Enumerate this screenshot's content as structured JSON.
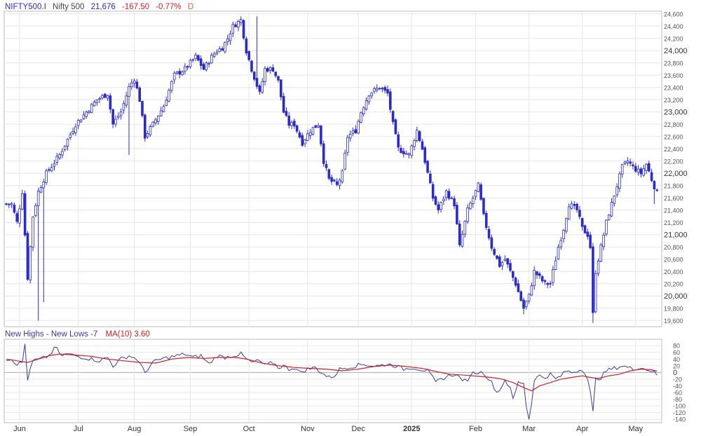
{
  "header": {
    "symbol": "NIFTY500.I",
    "name": "Nifty 500",
    "last": "21,676",
    "change": "-167.50",
    "change_pct": "-0.77%",
    "interval": "D"
  },
  "indicator_header": {
    "label": "New Highs - New Lows -7",
    "ma_label": "MA(10) 3.60"
  },
  "colors": {
    "candle": "#2b2bcc",
    "indicator_line": "#3b3b9e",
    "ma_line": "#cc2222",
    "grid": "#e6e6e6",
    "axis_text": "#555555",
    "negative": "#d62020",
    "interval": "#d2691e"
  },
  "chart_data": [
    {
      "type": "candlestick",
      "title": "",
      "y_ticks": [
        "19,600",
        "19,800",
        "20,000",
        "20,200",
        "20,400",
        "20,600",
        "20,800",
        "21,000",
        "21,200",
        "21,400",
        "21,600",
        "21,800",
        "22,000",
        "22,200",
        "22,400",
        "22,600",
        "22,800",
        "23,000",
        "23,200",
        "23,400",
        "23,600",
        "23,800",
        "24,000",
        "24,200",
        "24,400",
        "24,600"
      ],
      "y_tick_values": [
        19600,
        19800,
        20000,
        20200,
        20400,
        20600,
        20800,
        21000,
        21200,
        21400,
        21600,
        21800,
        22000,
        22200,
        22400,
        22600,
        22800,
        23000,
        23200,
        23400,
        23600,
        23800,
        24000,
        24200,
        24400,
        24600
      ],
      "ylim": [
        19500,
        24620
      ],
      "x_labels": [
        "Jun",
        "Jul",
        "Aug",
        "Sep",
        "Oct",
        "Nov",
        "Dec",
        "2025",
        "Feb",
        "Mar",
        "Apr",
        "May"
      ],
      "x_label_values": [
        5,
        27,
        48,
        69,
        91,
        113,
        132,
        152,
        176,
        196,
        216,
        236
      ],
      "xlim": [
        0,
        245
      ],
      "anchors": [
        [
          0,
          21500
        ],
        [
          2,
          21500
        ],
        [
          4,
          21200
        ],
        [
          6,
          21700
        ],
        [
          8,
          20300
        ],
        [
          10,
          21300
        ],
        [
          12,
          21700
        ],
        [
          15,
          22000
        ],
        [
          20,
          22300
        ],
        [
          26,
          22800
        ],
        [
          30,
          23000
        ],
        [
          34,
          23200
        ],
        [
          38,
          23300
        ],
        [
          40,
          22800
        ],
        [
          43,
          23000
        ],
        [
          46,
          23400
        ],
        [
          48,
          23550
        ],
        [
          50,
          23200
        ],
        [
          52,
          22600
        ],
        [
          55,
          22800
        ],
        [
          59,
          23100
        ],
        [
          63,
          23600
        ],
        [
          67,
          23700
        ],
        [
          71,
          23900
        ],
        [
          74,
          23700
        ],
        [
          77,
          23900
        ],
        [
          79,
          24000
        ],
        [
          81,
          24050
        ],
        [
          83,
          24200
        ],
        [
          85,
          24400
        ],
        [
          88,
          24500
        ],
        [
          90,
          24000
        ],
        [
          92,
          23700
        ],
        [
          95,
          23300
        ],
        [
          97,
          23700
        ],
        [
          100,
          23700
        ],
        [
          102,
          23500
        ],
        [
          104,
          23000
        ],
        [
          106,
          22800
        ],
        [
          108,
          22800
        ],
        [
          111,
          22500
        ],
        [
          114,
          22700
        ],
        [
          117,
          22800
        ],
        [
          119,
          22200
        ],
        [
          121,
          21900
        ],
        [
          124,
          21800
        ],
        [
          126,
          22000
        ],
        [
          128,
          22600
        ],
        [
          131,
          22700
        ],
        [
          133,
          23000
        ],
        [
          136,
          23300
        ],
        [
          140,
          23400
        ],
        [
          143,
          23300
        ],
        [
          145,
          22800
        ],
        [
          147,
          22400
        ],
        [
          151,
          22300
        ],
        [
          154,
          22700
        ],
        [
          156,
          22400
        ],
        [
          160,
          21600
        ],
        [
          162,
          21400
        ],
        [
          165,
          21700
        ],
        [
          168,
          21500
        ],
        [
          170,
          20800
        ],
        [
          173,
          21400
        ],
        [
          175,
          21600
        ],
        [
          177,
          21800
        ],
        [
          179,
          21300
        ],
        [
          182,
          20800
        ],
        [
          185,
          20500
        ],
        [
          187,
          20600
        ],
        [
          189,
          20400
        ],
        [
          191,
          20200
        ],
        [
          194,
          19800
        ],
        [
          196,
          20000
        ],
        [
          198,
          20400
        ],
        [
          200,
          20300
        ],
        [
          202,
          20200
        ],
        [
          204,
          20200
        ],
        [
          207,
          20800
        ],
        [
          209,
          21100
        ],
        [
          211,
          21500
        ],
        [
          214,
          21400
        ],
        [
          216,
          21100
        ],
        [
          218,
          21000
        ],
        [
          219,
          20800
        ],
        [
          220,
          19700
        ],
        [
          221,
          20400
        ],
        [
          223,
          20800
        ],
        [
          225,
          21200
        ],
        [
          227,
          21500
        ],
        [
          229,
          21800
        ],
        [
          231,
          22100
        ],
        [
          233,
          22200
        ],
        [
          235,
          22100
        ],
        [
          238,
          22000
        ],
        [
          240,
          22150
        ],
        [
          242,
          21900
        ],
        [
          244,
          21676
        ]
      ],
      "wick_extremes": [
        [
          12,
          19600
        ],
        [
          14,
          19900
        ],
        [
          46,
          22300
        ],
        [
          94,
          24560
        ],
        [
          220,
          19560
        ],
        [
          194,
          19700
        ],
        [
          243,
          21500
        ]
      ]
    },
    {
      "type": "line",
      "title": "",
      "series": [
        {
          "name": "New Highs - New Lows",
          "values": [
            [
              0,
              40
            ],
            [
              2,
              40
            ],
            [
              4,
              25
            ],
            [
              6,
              30
            ],
            [
              7,
              85
            ],
            [
              8,
              -20
            ],
            [
              10,
              35
            ],
            [
              13,
              40
            ],
            [
              16,
              50
            ],
            [
              18,
              70
            ],
            [
              19,
              75
            ],
            [
              20,
              50
            ],
            [
              23,
              55
            ],
            [
              26,
              50
            ],
            [
              29,
              45
            ],
            [
              32,
              40
            ],
            [
              35,
              35
            ],
            [
              38,
              45
            ],
            [
              40,
              20
            ],
            [
              43,
              40
            ],
            [
              46,
              50
            ],
            [
              49,
              40
            ],
            [
              52,
              0
            ],
            [
              55,
              30
            ],
            [
              58,
              40
            ],
            [
              61,
              45
            ],
            [
              64,
              50
            ],
            [
              67,
              55
            ],
            [
              70,
              45
            ],
            [
              73,
              50
            ],
            [
              76,
              25
            ],
            [
              79,
              50
            ],
            [
              82,
              45
            ],
            [
              85,
              50
            ],
            [
              88,
              55
            ],
            [
              90,
              40
            ],
            [
              92,
              30
            ],
            [
              95,
              35
            ],
            [
              97,
              20
            ],
            [
              100,
              30
            ],
            [
              102,
              15
            ],
            [
              104,
              20
            ],
            [
              106,
              10
            ],
            [
              108,
              15
            ],
            [
              110,
              0
            ],
            [
              113,
              10
            ],
            [
              116,
              15
            ],
            [
              118,
              0
            ],
            [
              121,
              -15
            ],
            [
              123,
              -10
            ],
            [
              125,
              10
            ],
            [
              128,
              15
            ],
            [
              131,
              20
            ],
            [
              134,
              25
            ],
            [
              137,
              20
            ],
            [
              140,
              20
            ],
            [
              143,
              25
            ],
            [
              146,
              20
            ],
            [
              149,
              10
            ],
            [
              152,
              15
            ],
            [
              155,
              10
            ],
            [
              158,
              5
            ],
            [
              161,
              -30
            ],
            [
              163,
              -20
            ],
            [
              166,
              -10
            ],
            [
              168,
              -5
            ],
            [
              171,
              -20
            ],
            [
              173,
              -30
            ],
            [
              174,
              -5
            ],
            [
              176,
              0
            ],
            [
              179,
              0
            ],
            [
              182,
              -30
            ],
            [
              184,
              -60
            ],
            [
              186,
              -40
            ],
            [
              187,
              -20
            ],
            [
              189,
              -50
            ],
            [
              190,
              -80
            ],
            [
              192,
              -30
            ],
            [
              194,
              -30
            ],
            [
              195,
              -100
            ],
            [
              196,
              -140
            ],
            [
              197,
              -90
            ],
            [
              198,
              -20
            ],
            [
              200,
              -10
            ],
            [
              202,
              -15
            ],
            [
              204,
              -5
            ],
            [
              206,
              -20
            ],
            [
              208,
              -10
            ],
            [
              210,
              5
            ],
            [
              212,
              0
            ],
            [
              214,
              5
            ],
            [
              216,
              10
            ],
            [
              217,
              0
            ],
            [
              218,
              -20
            ],
            [
              219,
              -60
            ],
            [
              220,
              -120
            ],
            [
              221,
              -20
            ],
            [
              223,
              -15
            ],
            [
              225,
              5
            ],
            [
              227,
              10
            ],
            [
              229,
              15
            ],
            [
              231,
              20
            ],
            [
              233,
              15
            ],
            [
              235,
              10
            ],
            [
              237,
              15
            ],
            [
              240,
              10
            ],
            [
              242,
              5
            ],
            [
              244,
              -7
            ]
          ]
        },
        {
          "name": "MA(10)",
          "values": [
            [
              0,
              40
            ],
            [
              4,
              35
            ],
            [
              8,
              30
            ],
            [
              12,
              40
            ],
            [
              16,
              50
            ],
            [
              20,
              55
            ],
            [
              26,
              52
            ],
            [
              32,
              48
            ],
            [
              38,
              40
            ],
            [
              44,
              35
            ],
            [
              50,
              30
            ],
            [
              56,
              28
            ],
            [
              62,
              40
            ],
            [
              68,
              45
            ],
            [
              74,
              42
            ],
            [
              80,
              45
            ],
            [
              86,
              45
            ],
            [
              90,
              40
            ],
            [
              96,
              28
            ],
            [
              102,
              20
            ],
            [
              108,
              15
            ],
            [
              114,
              12
            ],
            [
              120,
              10
            ],
            [
              126,
              5
            ],
            [
              132,
              10
            ],
            [
              138,
              18
            ],
            [
              144,
              22
            ],
            [
              150,
              18
            ],
            [
              156,
              12
            ],
            [
              160,
              5
            ],
            [
              166,
              -5
            ],
            [
              172,
              -8
            ],
            [
              178,
              -12
            ],
            [
              182,
              -15
            ],
            [
              186,
              -20
            ],
            [
              190,
              -30
            ],
            [
              194,
              -45
            ],
            [
              197,
              -55
            ],
            [
              200,
              -40
            ],
            [
              204,
              -30
            ],
            [
              208,
              -20
            ],
            [
              212,
              -15
            ],
            [
              216,
              -10
            ],
            [
              219,
              -15
            ],
            [
              222,
              -18
            ],
            [
              226,
              -10
            ],
            [
              230,
              -5
            ],
            [
              234,
              5
            ],
            [
              238,
              10
            ],
            [
              242,
              8
            ],
            [
              244,
              4
            ]
          ]
        }
      ],
      "y_ticks": [
        "80",
        "60",
        "40",
        "20",
        "0",
        "-20",
        "-40",
        "-60",
        "-80",
        "-100",
        "-120",
        "-140"
      ],
      "y_tick_values": [
        80,
        60,
        40,
        20,
        0,
        -20,
        -40,
        -60,
        -80,
        -100,
        -120,
        -140
      ],
      "ylim": [
        -150,
        95
      ],
      "grid": true
    }
  ]
}
